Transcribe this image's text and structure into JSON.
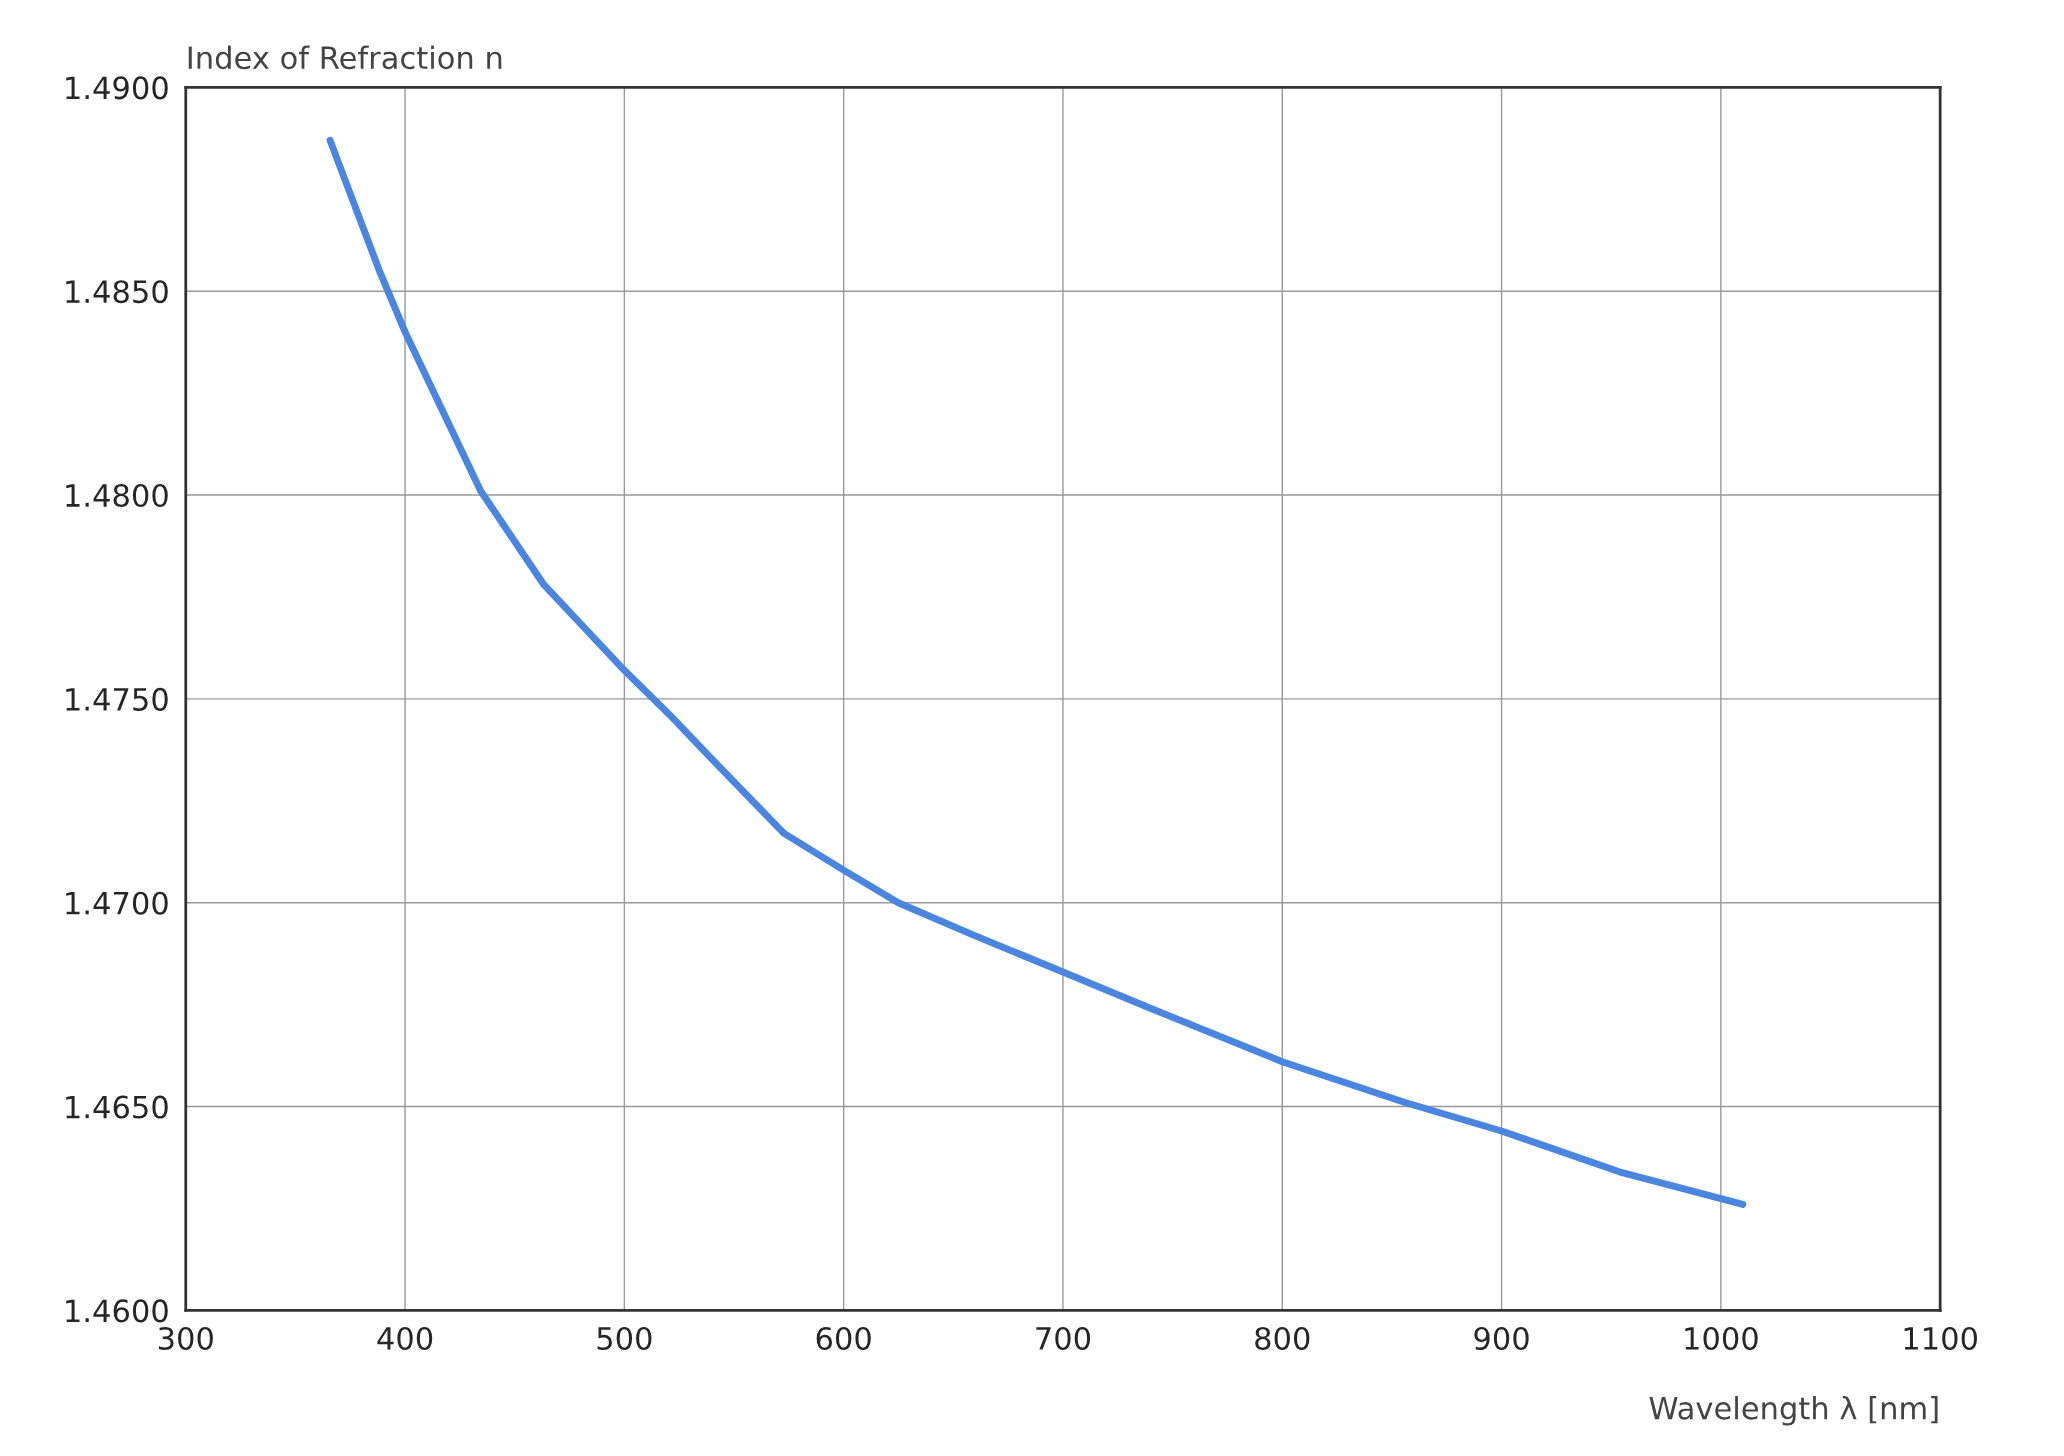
{
  "chart_data": {
    "type": "line",
    "xlabel": "Wavelength λ [nm]",
    "ylabel": "Index of Refraction n",
    "series": [
      {
        "color": "#4a86e0",
        "x": [
          365.8,
          388.3,
          400,
          434.5,
          463.3,
          500,
          520.8,
          543.9,
          572.8,
          600,
          624.9,
          659.5,
          700,
          740.4,
          800,
          856,
          900,
          953.7,
          1010
        ],
        "values": [
          1.4887,
          1.4855,
          1.484,
          1.4801,
          1.4778,
          1.4757,
          1.4746,
          1.4733,
          1.4717,
          1.4708,
          1.47,
          1.4692,
          1.4683,
          1.4674,
          1.4661,
          1.4651,
          1.4644,
          1.4634,
          1.4626
        ]
      }
    ],
    "xlim": [
      300,
      1100
    ],
    "xticks": [
      300,
      400,
      500,
      600,
      700,
      800,
      900,
      1000,
      1100
    ],
    "ylim": [
      1.46,
      1.49
    ],
    "yticks": [
      {
        "value": 1.46,
        "label": "1.4600"
      },
      {
        "value": 1.465,
        "label": "1.4650"
      },
      {
        "value": 1.47,
        "label": "1.4700"
      },
      {
        "value": 1.475,
        "label": "1.4750"
      },
      {
        "value": 1.48,
        "label": "1.4800"
      },
      {
        "value": 1.485,
        "label": "1.4850"
      },
      {
        "value": 1.49,
        "label": "1.4900"
      }
    ],
    "grid": true,
    "marker": "none",
    "line_style": "solid"
  }
}
